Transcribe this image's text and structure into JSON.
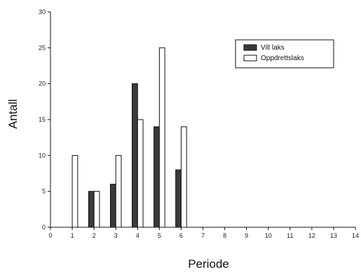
{
  "chart_data": {
    "type": "bar",
    "xlabel": "Periode",
    "ylabel": "Antall",
    "xlim": [
      0,
      14
    ],
    "ylim": [
      0,
      30
    ],
    "x_ticks": [
      0,
      1,
      2,
      3,
      4,
      5,
      6,
      7,
      8,
      9,
      10,
      11,
      12,
      13,
      14
    ],
    "y_ticks": [
      0,
      5,
      10,
      15,
      20,
      25,
      30
    ],
    "grid": false,
    "legend_position": "top-right",
    "series": [
      {
        "name": "Vill laks",
        "color": "#3a3a3a",
        "x": [
          1,
          2,
          3,
          4,
          5,
          6
        ],
        "values": [
          0,
          5,
          6,
          20,
          14,
          8
        ]
      },
      {
        "name": "Oppdrettslaks",
        "color": "#ffffff",
        "x": [
          1,
          2,
          3,
          4,
          5,
          6
        ],
        "values": [
          10,
          5,
          10,
          15,
          25,
          14
        ]
      }
    ]
  }
}
